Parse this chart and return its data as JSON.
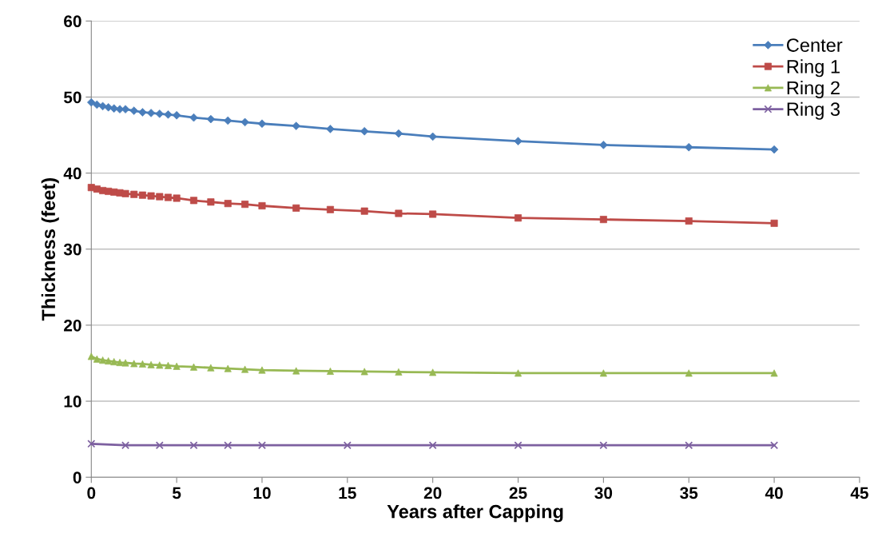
{
  "chart_data": {
    "type": "line",
    "xlabel": "Years after Capping",
    "ylabel": "Thickness (feet)",
    "xlim": [
      0,
      45
    ],
    "xticks": [
      0,
      5,
      10,
      15,
      20,
      25,
      30,
      35,
      40,
      45
    ],
    "ylim": [
      0,
      60
    ],
    "yticks": [
      0,
      10,
      20,
      30,
      40,
      50,
      60
    ],
    "grid": "y",
    "legend": "top right",
    "line_style": "solid",
    "series": [
      {
        "name": "Center",
        "color": "#4a7ebb",
        "marker": "diamond",
        "x": [
          0,
          0.33,
          0.67,
          1,
          1.33,
          1.67,
          2,
          2.5,
          3,
          3.5,
          4,
          4.5,
          5,
          6,
          7,
          8,
          9,
          10,
          12,
          14,
          16,
          18,
          20,
          25,
          30,
          35,
          40
        ],
        "values": [
          49.3,
          49.0,
          48.8,
          48.65,
          48.5,
          48.4,
          48.4,
          48.2,
          48.0,
          47.9,
          47.8,
          47.7,
          47.6,
          47.3,
          47.1,
          46.9,
          46.7,
          46.5,
          46.2,
          45.8,
          45.5,
          45.2,
          44.8,
          44.2,
          43.7,
          43.4,
          43.1
        ]
      },
      {
        "name": "Ring 1",
        "color": "#be4b48",
        "marker": "square",
        "x": [
          0,
          0.33,
          0.67,
          1,
          1.33,
          1.67,
          2,
          2.5,
          3,
          3.5,
          4,
          4.5,
          5,
          6,
          7,
          8,
          9,
          10,
          12,
          14,
          16,
          18,
          20,
          25,
          30,
          35,
          40
        ],
        "values": [
          38.1,
          37.9,
          37.7,
          37.6,
          37.5,
          37.4,
          37.3,
          37.2,
          37.1,
          37.0,
          36.9,
          36.8,
          36.7,
          36.4,
          36.2,
          36.0,
          35.9,
          35.7,
          35.4,
          35.2,
          35.0,
          34.7,
          34.6,
          34.1,
          33.9,
          33.7,
          33.4
        ]
      },
      {
        "name": "Ring 2",
        "color": "#98b954",
        "marker": "triangle",
        "x": [
          0,
          0.33,
          0.67,
          1,
          1.33,
          1.67,
          2,
          2.5,
          3,
          3.5,
          4,
          4.5,
          5,
          6,
          7,
          8,
          9,
          10,
          12,
          14,
          16,
          18,
          20,
          25,
          30,
          35,
          40
        ],
        "values": [
          15.9,
          15.55,
          15.4,
          15.3,
          15.2,
          15.1,
          15.05,
          14.95,
          14.9,
          14.8,
          14.75,
          14.7,
          14.6,
          14.5,
          14.4,
          14.3,
          14.2,
          14.1,
          14.0,
          13.95,
          13.9,
          13.85,
          13.8,
          13.7,
          13.7,
          13.7,
          13.7
        ]
      },
      {
        "name": "Ring 3",
        "color": "#7d60a0",
        "marker": "cross",
        "x": [
          0,
          2,
          4,
          6,
          8,
          10,
          15,
          20,
          25,
          30,
          35,
          40
        ],
        "values": [
          4.4,
          4.2,
          4.2,
          4.2,
          4.2,
          4.2,
          4.2,
          4.2,
          4.2,
          4.2,
          4.2,
          4.2
        ]
      }
    ]
  }
}
